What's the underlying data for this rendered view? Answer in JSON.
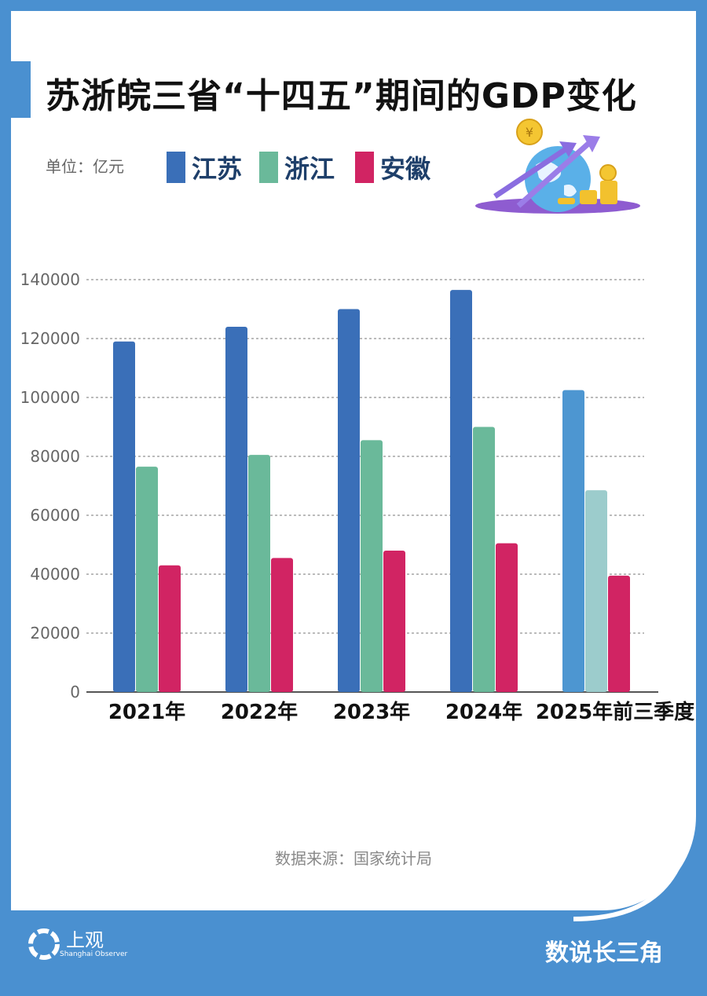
{
  "header": {
    "title": "苏浙皖三省“十四五”期间的GDP变化",
    "unit": "单位：亿元"
  },
  "legend": [
    {
      "label": "江苏",
      "color": "#3a6fb8"
    },
    {
      "label": "浙江",
      "color": "#6ab99a"
    },
    {
      "label": "安徽",
      "color": "#d12463"
    }
  ],
  "chart_data": {
    "type": "bar",
    "categories": [
      "2021年",
      "2022年",
      "2023年",
      "2024年",
      "2025年前三季度"
    ],
    "series": [
      {
        "name": "江苏",
        "values": [
          119000,
          124000,
          130000,
          136500,
          102500
        ],
        "color": "#3a6fb8",
        "highlight_color": "#4d96d1"
      },
      {
        "name": "浙江",
        "values": [
          76500,
          80500,
          85500,
          90000,
          68500
        ],
        "color": "#6ab99a",
        "highlight_color": "#9ccccc"
      },
      {
        "name": "安徽",
        "values": [
          43000,
          45500,
          48000,
          50500,
          39500
        ],
        "color": "#d12463",
        "highlight_color": "#d12463"
      }
    ],
    "y_ticks": [
      "0",
      "20000",
      "40000",
      "60000",
      "80000",
      "100000",
      "120000",
      "140000"
    ],
    "ylim": [
      0,
      140000
    ],
    "grid": true
  },
  "footer": {
    "source": "数据来源：国家统计局",
    "brand": "上观",
    "brand_sub": "Shanghai Observer",
    "column": "数说长三角"
  },
  "icons": [
    "globe-icon",
    "coin-icon",
    "arrow-up-icon",
    "shanghai-observer-logo-icon"
  ]
}
